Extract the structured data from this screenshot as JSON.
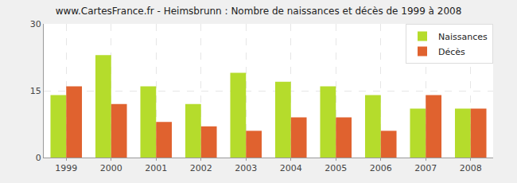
{
  "chart_data": {
    "type": "bar",
    "title": "www.CartesFrance.fr - Heimsbrunn : Nombre de naissances et décès de 1999 à 2008",
    "categories": [
      "1999",
      "2000",
      "2001",
      "2002",
      "2003",
      "2004",
      "2005",
      "2006",
      "2007",
      "2008"
    ],
    "series": [
      {
        "name": "Naissances",
        "color": "#b5dc2c",
        "values": [
          14,
          23,
          16,
          12,
          19,
          17,
          16,
          14,
          11,
          11
        ]
      },
      {
        "name": "Décès",
        "color": "#e0622f",
        "values": [
          16,
          12,
          8,
          7,
          6,
          9,
          9,
          6,
          14,
          11
        ]
      }
    ],
    "ylim": [
      0,
      30
    ],
    "yticks": [
      0,
      15,
      30
    ],
    "grid": true,
    "legend": "top-right"
  }
}
